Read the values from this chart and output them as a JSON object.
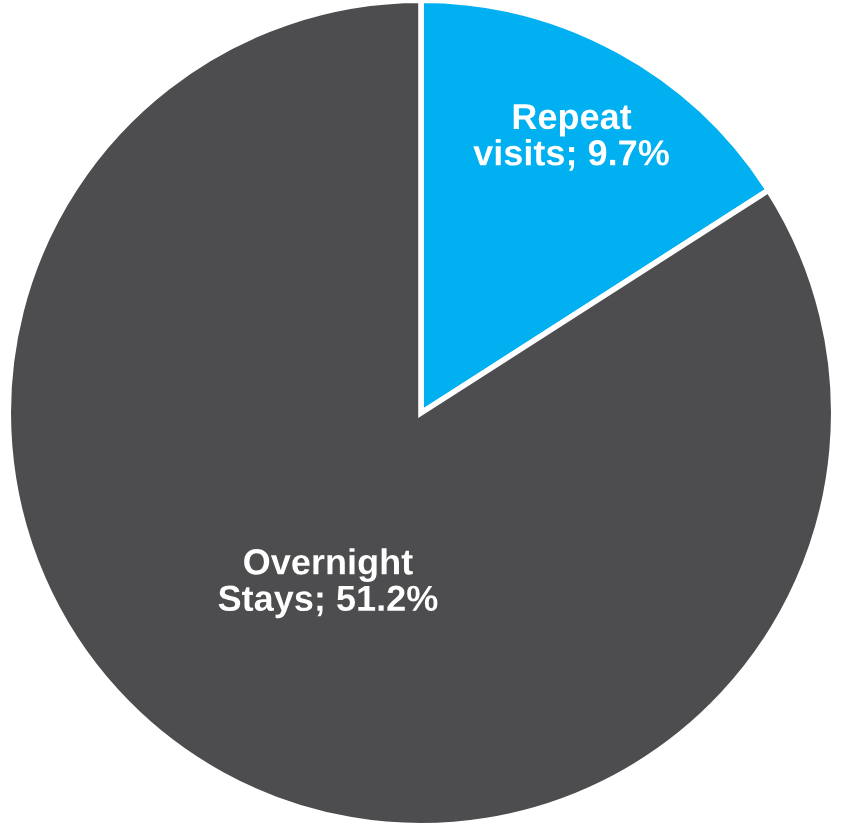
{
  "chart_data": {
    "type": "pie",
    "categories": [
      "Repeat visits",
      "Overnight Stays"
    ],
    "values": [
      9.7,
      51.2
    ],
    "value_labels": [
      "9.7%",
      "51.2%"
    ],
    "colors": [
      "#00b0f0",
      "#4d4d4f"
    ],
    "legend": false
  }
}
